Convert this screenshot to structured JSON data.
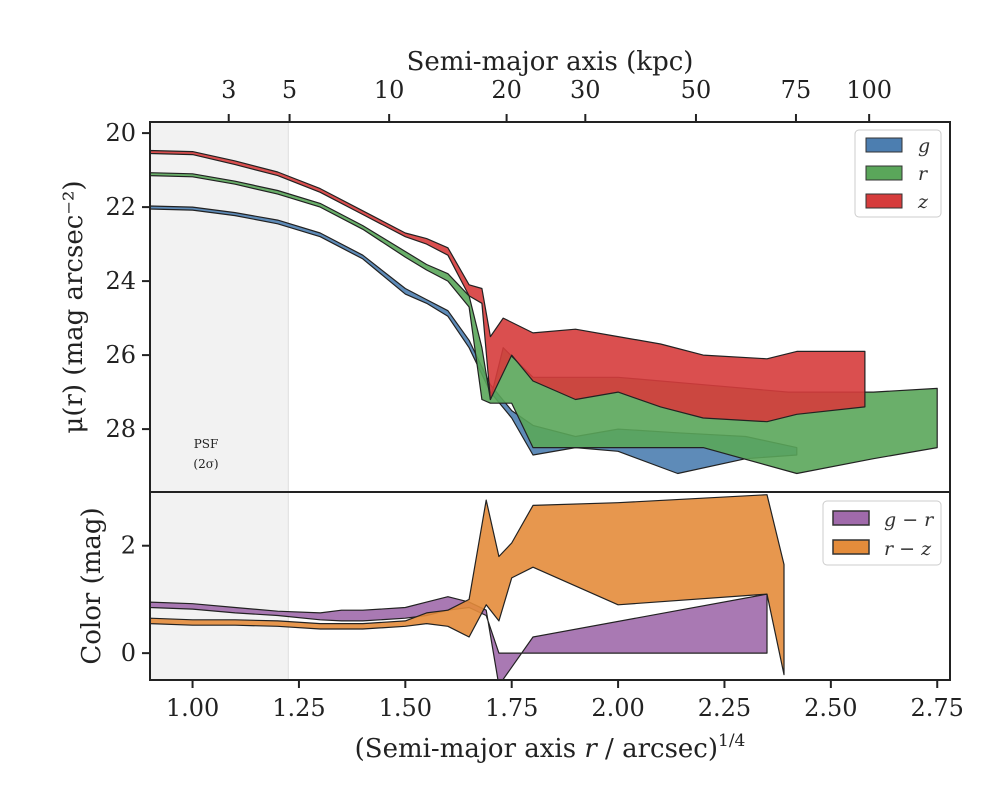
{
  "chart_data": [
    {
      "type": "area",
      "ylabel": "μ(r) (mag arcsec⁻²)",
      "top_xlabel": "Semi-major axis (kpc)",
      "xlim": [
        0.9,
        2.78
      ],
      "ylim": [
        29.7,
        19.7
      ],
      "y_inverted": true,
      "yticks": [
        20,
        22,
        24,
        26,
        28
      ],
      "top_ticks": [
        {
          "label": "3",
          "x": 1.085
        },
        {
          "label": "5",
          "x": 1.228
        },
        {
          "label": "10",
          "x": 1.462
        },
        {
          "label": "20",
          "x": 1.738
        },
        {
          "label": "30",
          "x": 1.923
        },
        {
          "label": "50",
          "x": 2.183
        },
        {
          "label": "75",
          "x": 2.418
        },
        {
          "label": "100",
          "x": 2.59
        }
      ],
      "psf_band": {
        "x0": 0.9,
        "x1": 1.225,
        "label_line1": "PSF",
        "label_line2": "(2σ)"
      },
      "legend": {
        "position": "top-right",
        "entries": [
          "g",
          "r",
          "z"
        ]
      },
      "series": [
        {
          "name": "g",
          "color": "#4c7eb0",
          "upper": [
            [
              0.9,
              21.97
            ],
            [
              1.0,
              22.0
            ],
            [
              1.1,
              22.15
            ],
            [
              1.2,
              22.35
            ],
            [
              1.3,
              22.7
            ],
            [
              1.4,
              23.3
            ],
            [
              1.5,
              24.2
            ],
            [
              1.55,
              24.5
            ],
            [
              1.6,
              24.8
            ],
            [
              1.65,
              25.6
            ],
            [
              1.7,
              26.8
            ],
            [
              1.75,
              27.5
            ],
            [
              1.8,
              27.9
            ],
            [
              1.9,
              28.2
            ],
            [
              2.0,
              28.0
            ],
            [
              2.14,
              28.1
            ],
            [
              2.3,
              28.2
            ],
            [
              2.42,
              28.5
            ]
          ],
          "lower": [
            [
              0.9,
              22.05
            ],
            [
              1.0,
              22.08
            ],
            [
              1.1,
              22.23
            ],
            [
              1.2,
              22.45
            ],
            [
              1.3,
              22.8
            ],
            [
              1.4,
              23.4
            ],
            [
              1.5,
              24.35
            ],
            [
              1.55,
              24.6
            ],
            [
              1.6,
              24.95
            ],
            [
              1.65,
              25.8
            ],
            [
              1.7,
              27.0
            ],
            [
              1.75,
              27.7
            ],
            [
              1.8,
              28.7
            ],
            [
              1.9,
              28.5
            ],
            [
              2.0,
              28.6
            ],
            [
              2.14,
              29.2
            ],
            [
              2.3,
              28.8
            ],
            [
              2.42,
              28.7
            ]
          ]
        },
        {
          "name": "r",
          "color": "#5aa65a",
          "upper": [
            [
              0.9,
              21.07
            ],
            [
              1.0,
              21.1
            ],
            [
              1.1,
              21.3
            ],
            [
              1.2,
              21.55
            ],
            [
              1.3,
              21.9
            ],
            [
              1.4,
              22.5
            ],
            [
              1.5,
              23.2
            ],
            [
              1.55,
              23.55
            ],
            [
              1.6,
              23.8
            ],
            [
              1.65,
              24.4
            ],
            [
              1.68,
              25.8
            ],
            [
              1.7,
              27.2
            ],
            [
              1.73,
              25.8
            ],
            [
              1.8,
              26.6
            ],
            [
              2.0,
              26.6
            ],
            [
              2.2,
              26.8
            ],
            [
              2.4,
              27.0
            ],
            [
              2.6,
              27.0
            ],
            [
              2.75,
              26.9
            ]
          ],
          "lower": [
            [
              0.9,
              21.15
            ],
            [
              1.0,
              21.18
            ],
            [
              1.1,
              21.38
            ],
            [
              1.2,
              21.65
            ],
            [
              1.3,
              22.0
            ],
            [
              1.4,
              22.6
            ],
            [
              1.5,
              23.35
            ],
            [
              1.55,
              23.7
            ],
            [
              1.6,
              24.0
            ],
            [
              1.65,
              24.7
            ],
            [
              1.68,
              27.2
            ],
            [
              1.7,
              27.3
            ],
            [
              1.75,
              27.3
            ],
            [
              1.8,
              28.5
            ],
            [
              2.0,
              28.5
            ],
            [
              2.2,
              28.5
            ],
            [
              2.42,
              29.2
            ],
            [
              2.6,
              28.8
            ],
            [
              2.75,
              28.5
            ]
          ]
        },
        {
          "name": "z",
          "color": "#d63c3c",
          "upper": [
            [
              0.9,
              20.47
            ],
            [
              1.0,
              20.5
            ],
            [
              1.1,
              20.75
            ],
            [
              1.2,
              21.05
            ],
            [
              1.3,
              21.5
            ],
            [
              1.4,
              22.1
            ],
            [
              1.5,
              22.7
            ],
            [
              1.55,
              22.85
            ],
            [
              1.6,
              23.1
            ],
            [
              1.65,
              24.1
            ],
            [
              1.68,
              24.2
            ],
            [
              1.7,
              25.5
            ],
            [
              1.73,
              25.0
            ],
            [
              1.8,
              25.4
            ],
            [
              1.9,
              25.3
            ],
            [
              2.0,
              25.5
            ],
            [
              2.1,
              25.7
            ],
            [
              2.2,
              26.0
            ],
            [
              2.35,
              26.1
            ],
            [
              2.42,
              25.9
            ],
            [
              2.58,
              25.9
            ]
          ],
          "lower": [
            [
              0.9,
              20.55
            ],
            [
              1.0,
              20.58
            ],
            [
              1.1,
              20.85
            ],
            [
              1.2,
              21.15
            ],
            [
              1.3,
              21.6
            ],
            [
              1.4,
              22.2
            ],
            [
              1.5,
              22.8
            ],
            [
              1.55,
              23.0
            ],
            [
              1.6,
              23.3
            ],
            [
              1.65,
              24.4
            ],
            [
              1.68,
              24.6
            ],
            [
              1.7,
              27.2
            ],
            [
              1.75,
              26.0
            ],
            [
              1.8,
              26.7
            ],
            [
              1.9,
              27.2
            ],
            [
              2.0,
              27.0
            ],
            [
              2.1,
              27.4
            ],
            [
              2.2,
              27.7
            ],
            [
              2.35,
              27.8
            ],
            [
              2.42,
              27.6
            ],
            [
              2.58,
              27.4
            ]
          ]
        }
      ]
    },
    {
      "type": "area",
      "xlabel": "(Semi-major axis r / arcsec)^1/4",
      "ylabel": "Color (mag)",
      "xlim": [
        0.9,
        2.78
      ],
      "ylim": [
        -0.5,
        3.0
      ],
      "xticks": [
        1.0,
        1.25,
        1.5,
        1.75,
        2.0,
        2.25,
        2.5,
        2.75
      ],
      "xtick_labels": [
        "1.00",
        "1.25",
        "1.50",
        "1.75",
        "2.00",
        "2.25",
        "2.50",
        "2.75"
      ],
      "yticks": [
        0,
        2
      ],
      "legend": {
        "position": "top-right",
        "entries": [
          "g − r",
          "r − z"
        ]
      },
      "series": [
        {
          "name": "g − r",
          "color": "#a06aab",
          "upper": [
            [
              0.9,
              0.95
            ],
            [
              1.0,
              0.92
            ],
            [
              1.1,
              0.85
            ],
            [
              1.2,
              0.78
            ],
            [
              1.3,
              0.75
            ],
            [
              1.35,
              0.8
            ],
            [
              1.4,
              0.8
            ],
            [
              1.5,
              0.85
            ],
            [
              1.55,
              0.95
            ],
            [
              1.6,
              1.05
            ],
            [
              1.65,
              0.95
            ],
            [
              1.69,
              0.8
            ],
            [
              1.72,
              -0.6
            ],
            [
              1.8,
              0.3
            ],
            [
              2.35,
              1.1
            ]
          ],
          "lower": [
            [
              0.9,
              0.85
            ],
            [
              1.0,
              0.82
            ],
            [
              1.1,
              0.75
            ],
            [
              1.2,
              0.7
            ],
            [
              1.3,
              0.62
            ],
            [
              1.35,
              0.6
            ],
            [
              1.4,
              0.6
            ],
            [
              1.5,
              0.65
            ],
            [
              1.55,
              0.7
            ],
            [
              1.6,
              0.8
            ],
            [
              1.65,
              0.85
            ],
            [
              1.69,
              0.7
            ],
            [
              1.72,
              0.0
            ],
            [
              1.8,
              0.0
            ],
            [
              2.35,
              0.0
            ]
          ]
        },
        {
          "name": "r − z",
          "color": "#e48c3b",
          "upper": [
            [
              0.9,
              0.65
            ],
            [
              1.0,
              0.62
            ],
            [
              1.1,
              0.62
            ],
            [
              1.2,
              0.6
            ],
            [
              1.3,
              0.55
            ],
            [
              1.4,
              0.55
            ],
            [
              1.5,
              0.6
            ],
            [
              1.55,
              0.75
            ],
            [
              1.6,
              0.8
            ],
            [
              1.65,
              1.0
            ],
            [
              1.69,
              2.85
            ],
            [
              1.72,
              1.8
            ],
            [
              1.75,
              2.05
            ],
            [
              1.8,
              2.75
            ],
            [
              2.0,
              2.8
            ],
            [
              2.35,
              2.95
            ],
            [
              2.39,
              1.65
            ]
          ],
          "lower": [
            [
              0.9,
              0.55
            ],
            [
              1.0,
              0.52
            ],
            [
              1.1,
              0.52
            ],
            [
              1.2,
              0.5
            ],
            [
              1.3,
              0.45
            ],
            [
              1.4,
              0.45
            ],
            [
              1.5,
              0.5
            ],
            [
              1.55,
              0.55
            ],
            [
              1.6,
              0.5
            ],
            [
              1.65,
              0.3
            ],
            [
              1.69,
              0.9
            ],
            [
              1.72,
              0.6
            ],
            [
              1.75,
              1.4
            ],
            [
              1.8,
              1.6
            ],
            [
              2.0,
              0.9
            ],
            [
              2.35,
              1.1
            ],
            [
              2.39,
              -0.4
            ]
          ]
        }
      ]
    }
  ]
}
